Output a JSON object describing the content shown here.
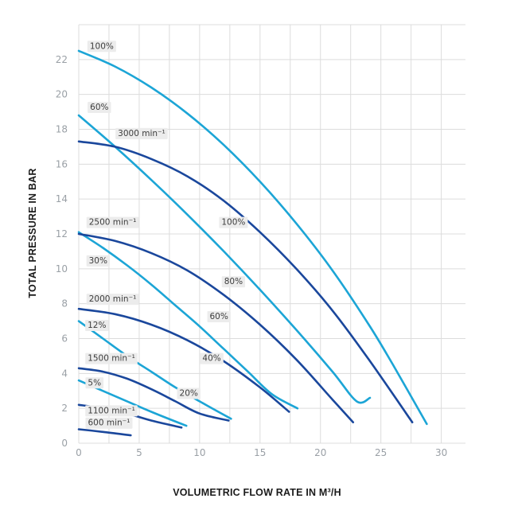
{
  "chart_data": {
    "type": "line",
    "xlabel": "VOLUMETRIC FLOW RATE IN M³/H",
    "ylabel": "TOTAL PRESSURE IN BAR",
    "xlim": [
      0,
      32
    ],
    "ylim": [
      0,
      24
    ],
    "x_ticks": [
      "0",
      "5",
      "10",
      "15",
      "20",
      "25",
      "30"
    ],
    "y_ticks": [
      "0",
      "2",
      "4",
      "6",
      "8",
      "10",
      "12",
      "14",
      "16",
      "18",
      "20",
      "22"
    ],
    "grid": true,
    "colors": {
      "light": "#1ca5d6",
      "dark": "#1a479c",
      "grid": "#dcdcdc",
      "tag": "#ececec"
    },
    "series": [
      {
        "name": "100%",
        "color": "light",
        "x": [
          0,
          3,
          6,
          9,
          12,
          15,
          18,
          21,
          24,
          26,
          28.8
        ],
        "y": [
          22.5,
          21.6,
          20.4,
          18.9,
          17.1,
          15.0,
          12.6,
          9.9,
          6.8,
          4.5,
          1.1
        ]
      },
      {
        "name": "60%",
        "color": "light",
        "x": [
          0,
          3,
          6,
          9,
          12,
          15,
          18,
          21,
          23,
          24.1
        ],
        "y": [
          18.8,
          17.0,
          15.1,
          13.1,
          11.0,
          8.8,
          6.5,
          4.1,
          2.4,
          2.6
        ]
      },
      {
        "name": "30%",
        "color": "light",
        "x": [
          0,
          2,
          4,
          6,
          8,
          10,
          12,
          14,
          16,
          18.1
        ],
        "y": [
          12.1,
          11.2,
          10.2,
          9.1,
          7.9,
          6.7,
          5.4,
          4.1,
          2.8,
          2.0
        ]
      },
      {
        "name": "12%",
        "color": "light",
        "x": [
          0,
          2,
          4,
          6,
          8,
          10,
          12.6
        ],
        "y": [
          7.0,
          6.0,
          5.0,
          4.1,
          3.2,
          2.4,
          1.4
        ]
      },
      {
        "name": "5%",
        "color": "light",
        "x": [
          0,
          2,
          4,
          6,
          8.9
        ],
        "y": [
          3.6,
          3.0,
          2.4,
          1.8,
          1.0
        ]
      },
      {
        "name": "3000 min⁻¹",
        "color": "dark",
        "x": [
          0,
          3,
          6,
          9,
          12,
          15,
          18,
          21,
          24,
          27.6
        ],
        "y": [
          17.3,
          17.0,
          16.3,
          15.3,
          13.9,
          12.1,
          10.0,
          7.6,
          4.8,
          1.2
        ]
      },
      {
        "name": "2500 min⁻¹",
        "color": "dark",
        "x": [
          0,
          3,
          6,
          9,
          12,
          15,
          18,
          21,
          22.7
        ],
        "y": [
          12.0,
          11.6,
          10.9,
          9.9,
          8.5,
          6.8,
          4.8,
          2.5,
          1.2
        ]
      },
      {
        "name": "2000 min⁻¹",
        "color": "dark",
        "x": [
          0,
          3,
          6,
          9,
          12,
          15,
          17.4
        ],
        "y": [
          7.7,
          7.4,
          6.8,
          5.9,
          4.7,
          3.2,
          1.8
        ]
      },
      {
        "name": "1500 min⁻¹",
        "color": "dark",
        "x": [
          0,
          2,
          4,
          6,
          8,
          10,
          12.4
        ],
        "y": [
          4.3,
          4.1,
          3.7,
          3.1,
          2.4,
          1.7,
          1.3
        ]
      },
      {
        "name": "1100 min⁻¹",
        "color": "dark",
        "x": [
          0,
          2,
          4,
          6,
          8.5
        ],
        "y": [
          2.2,
          2.0,
          1.7,
          1.3,
          0.9
        ]
      },
      {
        "name": "600 min⁻¹",
        "color": "dark",
        "x": [
          0,
          2,
          4.3
        ],
        "y": [
          0.8,
          0.65,
          0.45
        ]
      }
    ],
    "labels": [
      {
        "text": "100%",
        "x": 1.9,
        "y": 22.8
      },
      {
        "text": "60%",
        "x": 1.7,
        "y": 19.3
      },
      {
        "text": "3000 min⁻¹",
        "x": 5.2,
        "y": 17.8
      },
      {
        "text": "2500 min⁻¹",
        "x": 2.8,
        "y": 12.7
      },
      {
        "text": "30%",
        "x": 1.6,
        "y": 10.5
      },
      {
        "text": "2000 min⁻¹",
        "x": 2.8,
        "y": 8.3
      },
      {
        "text": "12%",
        "x": 1.5,
        "y": 6.8
      },
      {
        "text": "1500 min⁻¹",
        "x": 2.7,
        "y": 4.9
      },
      {
        "text": "5%",
        "x": 1.3,
        "y": 3.5
      },
      {
        "text": "1100 min⁻¹",
        "x": 2.7,
        "y": 1.9
      },
      {
        "text": "600 min⁻¹",
        "x": 2.5,
        "y": 1.2
      },
      {
        "text": "100%",
        "x": 12.8,
        "y": 12.7
      },
      {
        "text": "80%",
        "x": 12.8,
        "y": 9.3
      },
      {
        "text": "60%",
        "x": 11.6,
        "y": 7.3
      },
      {
        "text": "40%",
        "x": 11.0,
        "y": 4.9
      },
      {
        "text": "20%",
        "x": 9.1,
        "y": 2.9
      }
    ]
  }
}
